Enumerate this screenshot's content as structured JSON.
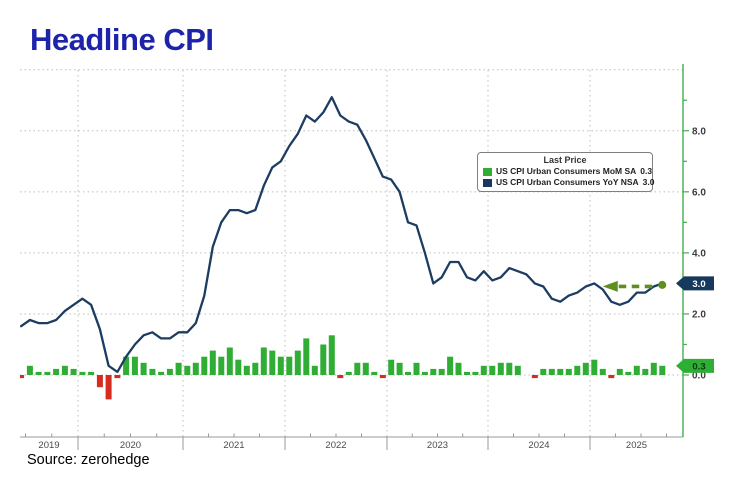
{
  "title": "Headline CPI",
  "source": "Source: zerohedge",
  "legend": {
    "title": "Last Price",
    "items": [
      {
        "label": "US CPI Urban Consumers MoM SA",
        "value": "0.3",
        "color": "#30ad35"
      },
      {
        "label": "US CPI Urban Consumers YoY NSA",
        "value": "3.0",
        "color": "#17395e"
      }
    ]
  },
  "colors": {
    "title_blue": "#1d24aa",
    "line_navy": "#1c3d61",
    "bar_positive_green": "#30ad35",
    "bar_negative_red": "#d62b1f",
    "right_axis_green": "#44ad4f",
    "grid_dotted_gray": "#bdbdbd",
    "x_axis_gray": "#999999",
    "arrow_olive": "#5f8f1f",
    "badge_yoy_bg": "#17395e",
    "badge_mom_bg": "#2fae35"
  },
  "chart_data": {
    "type": "combo",
    "title": "Headline CPI",
    "grid": true,
    "legend_position": "inside-top-right",
    "ylim": [
      -1,
      10
    ],
    "x_year_labels": [
      "2019",
      "2020",
      "2021",
      "2022",
      "2023",
      "2024",
      "2025"
    ],
    "y_axis": {
      "major": [
        {
          "value": 8,
          "label": "8.0"
        },
        {
          "value": 6,
          "label": "6.0"
        },
        {
          "value": 4,
          "label": "4.0"
        },
        {
          "value": 2,
          "label": "2.0"
        },
        {
          "value": 0,
          "label": "0.0"
        }
      ],
      "minor_values": [
        9,
        7,
        5,
        3,
        1
      ],
      "grid_values": [
        10,
        8,
        6,
        4,
        2,
        0
      ]
    },
    "x": [
      "2019-06",
      "2019-07",
      "2019-08",
      "2019-09",
      "2019-10",
      "2019-11",
      "2019-12",
      "2020-01",
      "2020-02",
      "2020-03",
      "2020-04",
      "2020-05",
      "2020-06",
      "2020-07",
      "2020-08",
      "2020-09",
      "2020-10",
      "2020-11",
      "2020-12",
      "2021-01",
      "2021-02",
      "2021-03",
      "2021-04",
      "2021-05",
      "2021-06",
      "2021-07",
      "2021-08",
      "2021-09",
      "2021-10",
      "2021-11",
      "2021-12",
      "2022-01",
      "2022-02",
      "2022-03",
      "2022-04",
      "2022-05",
      "2022-06",
      "2022-07",
      "2022-08",
      "2022-09",
      "2022-10",
      "2022-11",
      "2022-12",
      "2023-01",
      "2023-02",
      "2023-03",
      "2023-04",
      "2023-05",
      "2023-06",
      "2023-07",
      "2023-08",
      "2023-09",
      "2023-10",
      "2023-11",
      "2023-12",
      "2024-01",
      "2024-02",
      "2024-03",
      "2024-04",
      "2024-05",
      "2024-06",
      "2024-07",
      "2024-08",
      "2024-09",
      "2024-10",
      "2024-11",
      "2024-12",
      "2025-01",
      "2025-02",
      "2025-03",
      "2025-04",
      "2025-05",
      "2025-06",
      "2025-07",
      "2025-08",
      "2025-09"
    ],
    "series": [
      {
        "name": "US CPI Urban Consumers MoM SA",
        "type": "bar",
        "unit": "% MoM",
        "last": 0.3,
        "values": [
          -0.1,
          0.3,
          0.1,
          0.1,
          0.2,
          0.3,
          0.2,
          0.1,
          0.1,
          -0.4,
          -0.8,
          -0.1,
          0.6,
          0.6,
          0.4,
          0.2,
          0.1,
          0.2,
          0.4,
          0.3,
          0.4,
          0.6,
          0.8,
          0.6,
          0.9,
          0.5,
          0.3,
          0.4,
          0.9,
          0.8,
          0.6,
          0.6,
          0.8,
          1.2,
          0.3,
          1.0,
          1.3,
          -0.1,
          0.1,
          0.4,
          0.4,
          0.1,
          -0.1,
          0.5,
          0.4,
          0.1,
          0.4,
          0.1,
          0.2,
          0.2,
          0.6,
          0.4,
          0.1,
          0.1,
          0.3,
          0.3,
          0.4,
          0.4,
          0.3,
          0.0,
          -0.1,
          0.2,
          0.2,
          0.2,
          0.2,
          0.3,
          0.4,
          0.5,
          0.2,
          -0.1,
          0.2,
          0.1,
          0.3,
          0.2,
          0.4,
          0.3
        ]
      },
      {
        "name": "US CPI Urban Consumers YoY NSA",
        "type": "line",
        "unit": "% YoY",
        "last": 3.0,
        "values": [
          1.6,
          1.8,
          1.7,
          1.7,
          1.8,
          2.1,
          2.3,
          2.5,
          2.3,
          1.5,
          0.3,
          0.1,
          0.6,
          1.0,
          1.3,
          1.4,
          1.2,
          1.2,
          1.4,
          1.4,
          1.7,
          2.6,
          4.2,
          5.0,
          5.4,
          5.4,
          5.3,
          5.4,
          6.2,
          6.8,
          7.0,
          7.5,
          7.9,
          8.5,
          8.3,
          8.6,
          9.1,
          8.5,
          8.3,
          8.2,
          7.7,
          7.1,
          6.5,
          6.4,
          6.0,
          5.0,
          4.9,
          4.0,
          3.0,
          3.2,
          3.7,
          3.7,
          3.2,
          3.1,
          3.4,
          3.1,
          3.2,
          3.5,
          3.4,
          3.3,
          3.0,
          2.9,
          2.5,
          2.4,
          2.6,
          2.7,
          2.9,
          3.0,
          2.8,
          2.4,
          2.3,
          2.4,
          2.7,
          2.7,
          2.9,
          3.0
        ]
      }
    ],
    "axis_badges": [
      {
        "series": "yoy",
        "text": "3.0",
        "value": 3.0,
        "bg": "#17395e",
        "fg": "#ffffff"
      },
      {
        "series": "mom",
        "text": "0.3",
        "value": 0.3,
        "bg": "#2fae35",
        "fg": "#0b3a10"
      }
    ],
    "annotations": [
      {
        "type": "arrow-left",
        "at_value": 3.0,
        "x_from_month": "2025-02",
        "x_to_month": "2025-09",
        "style": "dashed",
        "color": "#5f8f1f",
        "endpoint_dot": true
      }
    ]
  }
}
